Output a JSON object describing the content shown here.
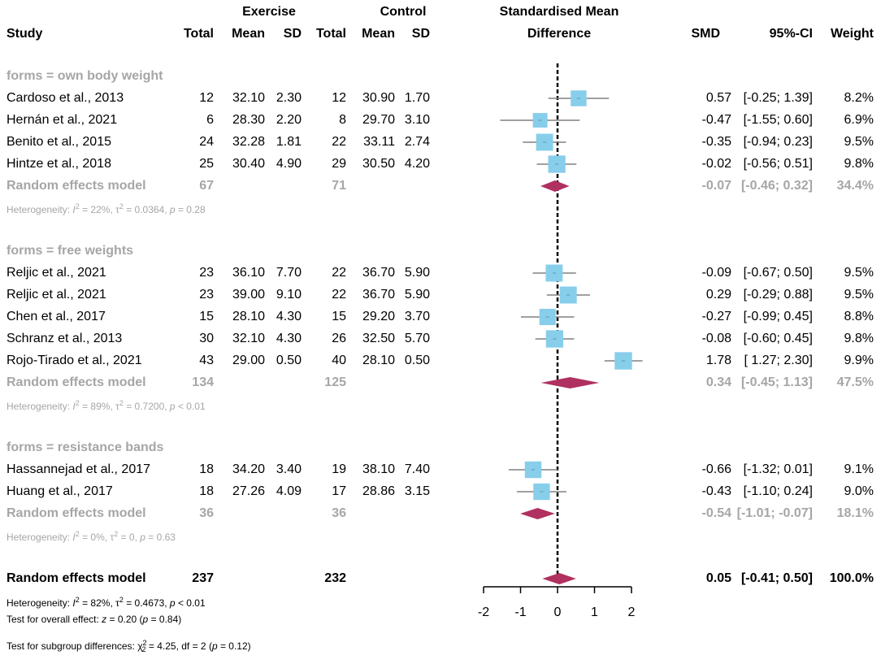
{
  "chart_data": {
    "type": "forest",
    "title": "Standardised Mean Difference",
    "xlabel": "Standardised Mean Difference",
    "xlim": [
      -2,
      2
    ],
    "xticks": [
      "-2",
      "-1",
      "0",
      "1",
      "2"
    ],
    "header": {
      "group_exercise": "Exercise",
      "group_control": "Control",
      "study": "Study",
      "total": "Total",
      "mean": "Mean",
      "sd": "SD",
      "smd_title_1": "Standardised Mean",
      "smd_title_2": "Difference",
      "smd": "SMD",
      "ci": "95%-CI",
      "weight": "Weight"
    },
    "subgroups": [
      {
        "label": "forms = own body weight",
        "studies": [
          {
            "study": "Cardoso et al., 2013",
            "e_total": "12",
            "e_mean": "32.10",
            "e_sd": "2.30",
            "c_total": "12",
            "c_mean": "30.90",
            "c_sd": "1.70",
            "smd": 0.57,
            "lo": -0.25,
            "hi": 1.39,
            "smd_text": "0.57",
            "ci_text": "[-0.25;  1.39]",
            "weight": "8.2%"
          },
          {
            "study": "Hernán et al., 2021",
            "e_total": "6",
            "e_mean": "28.30",
            "e_sd": "2.20",
            "c_total": "8",
            "c_mean": "29.70",
            "c_sd": "3.10",
            "smd": -0.47,
            "lo": -1.55,
            "hi": 0.6,
            "smd_text": "-0.47",
            "ci_text": "[-1.55;  0.60]",
            "weight": "6.9%"
          },
          {
            "study": "Benito et al., 2015",
            "e_total": "24",
            "e_mean": "32.28",
            "e_sd": "1.81",
            "c_total": "22",
            "c_mean": "33.11",
            "c_sd": "2.74",
            "smd": -0.35,
            "lo": -0.94,
            "hi": 0.23,
            "smd_text": "-0.35",
            "ci_text": "[-0.94;  0.23]",
            "weight": "9.5%"
          },
          {
            "study": "Hintze et al., 2018",
            "e_total": "25",
            "e_mean": "30.40",
            "e_sd": "4.90",
            "c_total": "29",
            "c_mean": "30.50",
            "c_sd": "4.20",
            "smd": -0.02,
            "lo": -0.56,
            "hi": 0.51,
            "smd_text": "-0.02",
            "ci_text": "[-0.56;  0.51]",
            "weight": "9.8%"
          }
        ],
        "model": {
          "label": "Random effects model",
          "e_total": "67",
          "c_total": "71",
          "smd": -0.07,
          "lo": -0.46,
          "hi": 0.32,
          "smd_text": "-0.07",
          "ci_text": "[-0.46;  0.32]",
          "weight": "34.4%"
        },
        "het": {
          "i2": "22%",
          "tau2": "0.0364",
          "p": "= 0.28"
        }
      },
      {
        "label": "forms = free weights",
        "studies": [
          {
            "study": "Reljic et al., 2021",
            "e_total": "23",
            "e_mean": "36.10",
            "e_sd": "7.70",
            "c_total": "22",
            "c_mean": "36.70",
            "c_sd": "5.90",
            "smd": -0.09,
            "lo": -0.67,
            "hi": 0.5,
            "smd_text": "-0.09",
            "ci_text": "[-0.67;  0.50]",
            "weight": "9.5%"
          },
          {
            "study": "Reljic et al., 2021",
            "e_total": "23",
            "e_mean": "39.00",
            "e_sd": "9.10",
            "c_total": "22",
            "c_mean": "36.70",
            "c_sd": "5.90",
            "smd": 0.29,
            "lo": -0.29,
            "hi": 0.88,
            "smd_text": "0.29",
            "ci_text": "[-0.29;  0.88]",
            "weight": "9.5%"
          },
          {
            "study": "Chen et al., 2017",
            "e_total": "15",
            "e_mean": "28.10",
            "e_sd": "4.30",
            "c_total": "15",
            "c_mean": "29.20",
            "c_sd": "3.70",
            "smd": -0.27,
            "lo": -0.99,
            "hi": 0.45,
            "smd_text": "-0.27",
            "ci_text": "[-0.99;  0.45]",
            "weight": "8.8%"
          },
          {
            "study": "Schranz et al., 2013",
            "e_total": "30",
            "e_mean": "32.10",
            "e_sd": "4.30",
            "c_total": "26",
            "c_mean": "32.50",
            "c_sd": "5.70",
            "smd": -0.08,
            "lo": -0.6,
            "hi": 0.45,
            "smd_text": "-0.08",
            "ci_text": "[-0.60;  0.45]",
            "weight": "9.8%"
          },
          {
            "study": "Rojo-Tirado et al., 2021",
            "e_total": "43",
            "e_mean": "29.00",
            "e_sd": "0.50",
            "c_total": "40",
            "c_mean": "28.10",
            "c_sd": "0.50",
            "smd": 1.78,
            "lo": 1.27,
            "hi": 2.3,
            "smd_text": "1.78",
            "ci_text": "[ 1.27;  2.30]",
            "weight": "9.9%"
          }
        ],
        "model": {
          "label": "Random effects model",
          "e_total": "134",
          "c_total": "125",
          "smd": 0.34,
          "lo": -0.45,
          "hi": 1.13,
          "smd_text": "0.34",
          "ci_text": "[-0.45;  1.13]",
          "weight": "47.5%"
        },
        "het": {
          "i2": "89%",
          "tau2": "0.7200",
          "p": "< 0.01"
        }
      },
      {
        "label": "forms = resistance bands",
        "studies": [
          {
            "study": "Hassannejad et al., 2017",
            "e_total": "18",
            "e_mean": "34.20",
            "e_sd": "3.40",
            "c_total": "19",
            "c_mean": "38.10",
            "c_sd": "7.40",
            "smd": -0.66,
            "lo": -1.32,
            "hi": 0.01,
            "smd_text": "-0.66",
            "ci_text": "[-1.32;  0.01]",
            "weight": "9.1%"
          },
          {
            "study": "Huang et al., 2017",
            "e_total": "18",
            "e_mean": "27.26",
            "e_sd": "4.09",
            "c_total": "17",
            "c_mean": "28.86",
            "c_sd": "3.15",
            "smd": -0.43,
            "lo": -1.1,
            "hi": 0.24,
            "smd_text": "-0.43",
            "ci_text": "[-1.10;  0.24]",
            "weight": "9.0%"
          }
        ],
        "model": {
          "label": "Random effects model",
          "e_total": "36",
          "c_total": "36",
          "smd": -0.54,
          "lo": -1.01,
          "hi": -0.07,
          "smd_text": "-0.54",
          "ci_text": "[-1.01; -0.07]",
          "weight": "18.1%"
        },
        "het": {
          "i2": "0%",
          "tau2": "0",
          "p": "= 0.63"
        }
      }
    ],
    "overall": {
      "label": "Random effects model",
      "e_total": "237",
      "c_total": "232",
      "smd": 0.05,
      "lo": -0.41,
      "hi": 0.5,
      "smd_text": "0.05",
      "ci_text": "[-0.41;  0.50]",
      "weight": "100.0%"
    },
    "overall_het": {
      "i2": "82%",
      "tau2": "0.4673",
      "p": "< 0.01"
    },
    "overall_effect": {
      "z": "0.20",
      "p": "= 0.84"
    },
    "subgroup_test": {
      "chi2": "4.25",
      "df": "2",
      "p": "= 0.12"
    },
    "colors": {
      "square": "#87ceeb",
      "diamond": "#b03060",
      "ci_line": "#808080",
      "grey_text": "#a6a6a6"
    },
    "labels": {
      "heterogeneity": "Heterogeneity:",
      "overall_effect": "Test for overall effect:",
      "subgroup_diff": "Test for subgroup differences:"
    }
  }
}
